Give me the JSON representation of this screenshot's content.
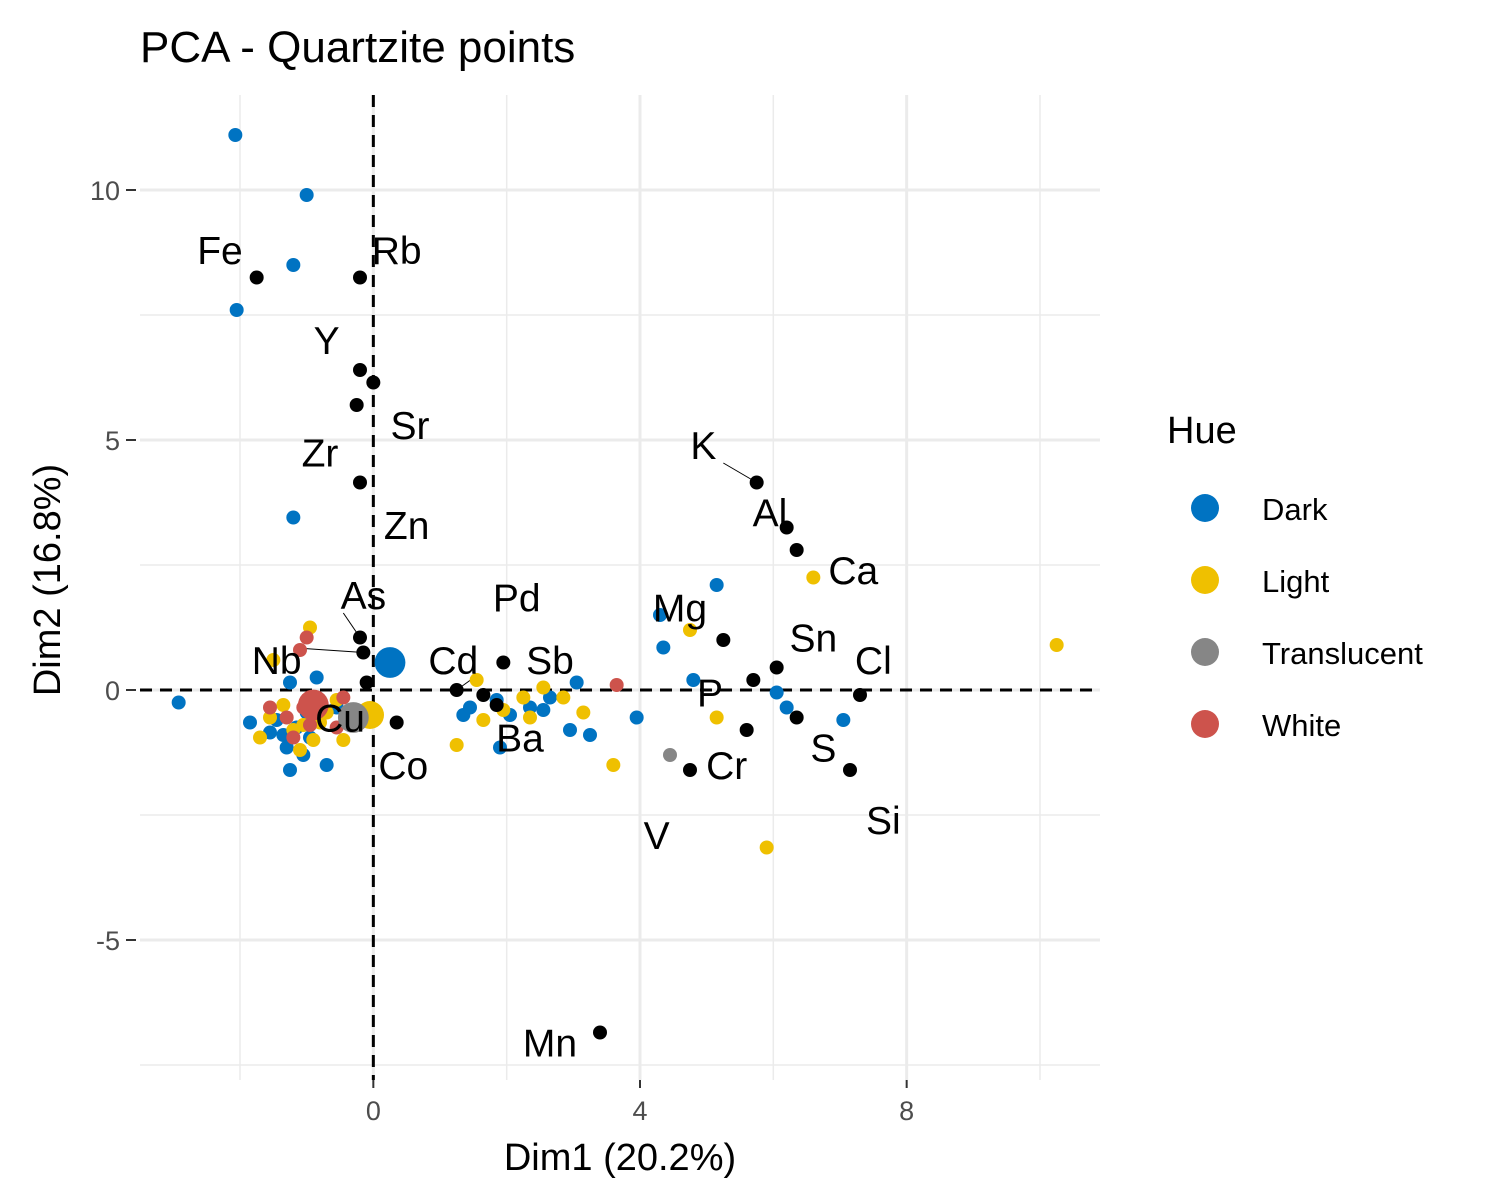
{
  "chart_data": {
    "type": "scatter",
    "title": "PCA - Quartzite points",
    "xlabel": "Dim1 (20.2%)",
    "ylabel": "Dim2 (16.8%)",
    "xlim": [
      -3.5,
      10.9
    ],
    "ylim": [
      -7.8,
      11.9
    ],
    "xticks": [
      0,
      4,
      8
    ],
    "yticks": [
      -5,
      0,
      5,
      10
    ],
    "tick_labels_x": [
      "0",
      "4",
      "8"
    ],
    "tick_labels_y": [
      "-5",
      "0",
      "5",
      "10"
    ],
    "grid": true,
    "reference_lines": {
      "x": 0,
      "y": 0,
      "style": "dashed"
    },
    "legend": {
      "title": "Hue",
      "placement": "right",
      "entries": [
        {
          "label": "Dark",
          "color": "#0073C2"
        },
        {
          "label": "Light",
          "color": "#EFC000"
        },
        {
          "label": "Translucent",
          "color": "#868686"
        },
        {
          "label": "White",
          "color": "#CD534C"
        }
      ]
    },
    "variable_color": "#000000",
    "variables": [
      {
        "name": "Fe",
        "x": -1.75,
        "y": 8.25,
        "lx": -2.3,
        "ly": 8.8
      },
      {
        "name": "Rb",
        "x": -0.2,
        "y": 8.25,
        "lx": 0.35,
        "ly": 8.8
      },
      {
        "name": "Y",
        "x": -0.2,
        "y": 6.4,
        "lx": -0.7,
        "ly": 7.0
      },
      {
        "name": "Sr",
        "x": 0.0,
        "y": 6.15,
        "lx": 0.55,
        "ly": 5.3
      },
      {
        "name": "Zr",
        "x": -0.25,
        "y": 5.7,
        "lx": -0.8,
        "ly": 4.75
      },
      {
        "name": "Zn",
        "x": -0.2,
        "y": 4.15,
        "lx": 0.5,
        "ly": 3.3
      },
      {
        "name": "As",
        "x": -0.2,
        "y": 1.05,
        "lx": -0.15,
        "ly": 1.9
      },
      {
        "name": "Nb",
        "x": -0.15,
        "y": 0.75,
        "lx": -1.45,
        "ly": 0.6
      },
      {
        "name": "Cu",
        "x": -0.1,
        "y": 0.15,
        "lx": -0.5,
        "ly": -0.55
      },
      {
        "name": "Cd",
        "x": 1.25,
        "y": 0.0,
        "lx": 1.2,
        "ly": 0.6
      },
      {
        "name": "Pd",
        "x": 1.95,
        "y": 0.55,
        "lx": 2.15,
        "ly": 1.85
      },
      {
        "name": "Sb",
        "x": 1.65,
        "y": -0.1,
        "lx": 2.65,
        "ly": 0.6
      },
      {
        "name": "Ba",
        "x": 1.85,
        "y": -0.3,
        "lx": 2.2,
        "ly": -0.95
      },
      {
        "name": "Co",
        "x": 0.35,
        "y": -0.65,
        "lx": 0.45,
        "ly": -1.5
      },
      {
        "name": "Mn",
        "x": 3.4,
        "y": -6.85,
        "lx": 2.65,
        "ly": -7.05
      },
      {
        "name": "K",
        "x": 5.75,
        "y": 4.15,
        "lx": 4.95,
        "ly": 4.9
      },
      {
        "name": "Al",
        "x": 6.2,
        "y": 3.25,
        "lx": 5.95,
        "ly": 3.55
      },
      {
        "name": "Ca",
        "x": 6.35,
        "y": 2.8,
        "lx": 7.2,
        "ly": 2.4
      },
      {
        "name": "Mg",
        "x": 5.25,
        "y": 1.0,
        "lx": 4.6,
        "ly": 1.65
      },
      {
        "name": "Sn",
        "x": 6.05,
        "y": 0.45,
        "lx": 6.6,
        "ly": 1.05
      },
      {
        "name": "Cl",
        "x": 7.3,
        "y": -0.1,
        "lx": 7.5,
        "ly": 0.6
      },
      {
        "name": "P",
        "x": 5.7,
        "y": 0.2,
        "lx": 5.05,
        "ly": -0.05
      },
      {
        "name": "S",
        "x": 6.35,
        "y": -0.55,
        "lx": 6.75,
        "ly": -1.15
      },
      {
        "name": "Cr",
        "x": 5.6,
        "y": -0.8,
        "lx": 5.3,
        "ly": -1.5
      },
      {
        "name": "V",
        "x": 4.75,
        "y": -1.6,
        "lx": 4.25,
        "ly": -2.9
      },
      {
        "name": "Si",
        "x": 7.15,
        "y": -1.6,
        "lx": 7.65,
        "ly": -2.6
      }
    ],
    "label_connectors": [
      "K",
      "As",
      "Nb",
      "Cd"
    ],
    "series": [
      {
        "name": "Dark",
        "color": "#0073C2",
        "points": [
          [
            -2.07,
            11.1
          ],
          [
            -1.0,
            9.9
          ],
          [
            -1.2,
            8.5
          ],
          [
            -2.05,
            7.6
          ],
          [
            -1.2,
            3.45
          ],
          [
            -2.92,
            -0.25
          ],
          [
            -1.85,
            -0.65
          ],
          [
            -1.55,
            -0.85
          ],
          [
            -1.45,
            -0.6
          ],
          [
            -1.35,
            -0.9
          ],
          [
            -1.3,
            -1.15
          ],
          [
            -1.25,
            -1.6
          ],
          [
            -1.15,
            -0.75
          ],
          [
            -1.05,
            -1.3
          ],
          [
            -1.0,
            -0.45
          ],
          [
            -0.95,
            -0.95
          ],
          [
            -0.85,
            0.25
          ],
          [
            -0.7,
            -1.5
          ],
          [
            -1.25,
            0.15
          ],
          [
            -0.55,
            -0.35
          ],
          [
            1.35,
            -0.5
          ],
          [
            1.45,
            -0.35
          ],
          [
            1.85,
            -0.2
          ],
          [
            1.9,
            -1.15
          ],
          [
            2.05,
            -0.5
          ],
          [
            2.35,
            -0.35
          ],
          [
            2.55,
            -0.4
          ],
          [
            2.65,
            -0.15
          ],
          [
            3.05,
            0.15
          ],
          [
            2.95,
            -0.8
          ],
          [
            3.25,
            -0.9
          ],
          [
            3.95,
            -0.55
          ],
          [
            4.3,
            1.5
          ],
          [
            4.35,
            0.85
          ],
          [
            4.8,
            0.2
          ],
          [
            5.15,
            2.1
          ],
          [
            6.05,
            -0.05
          ],
          [
            6.2,
            -0.35
          ],
          [
            7.05,
            -0.6
          ]
        ],
        "size": [
          [
            0.25,
            0.55,
            2.2
          ]
        ]
      },
      {
        "name": "Light",
        "color": "#EFC000",
        "points": [
          [
            -0.95,
            1.25
          ],
          [
            -1.5,
            0.6
          ],
          [
            -1.7,
            -0.95
          ],
          [
            -1.55,
            -0.55
          ],
          [
            -1.35,
            -0.3
          ],
          [
            -1.2,
            -0.8
          ],
          [
            -1.1,
            -1.2
          ],
          [
            -1.05,
            -0.7
          ],
          [
            -0.9,
            -1.0
          ],
          [
            -0.8,
            -0.65
          ],
          [
            -0.7,
            -0.45
          ],
          [
            -0.55,
            -0.2
          ],
          [
            -0.45,
            -1.0
          ],
          [
            1.25,
            -1.1
          ],
          [
            1.55,
            0.2
          ],
          [
            1.65,
            -0.6
          ],
          [
            1.95,
            -0.4
          ],
          [
            2.25,
            -0.15
          ],
          [
            2.35,
            -0.55
          ],
          [
            2.55,
            0.05
          ],
          [
            2.85,
            -0.15
          ],
          [
            3.15,
            -0.45
          ],
          [
            3.6,
            -1.5
          ],
          [
            4.75,
            1.2
          ],
          [
            5.15,
            -0.55
          ],
          [
            5.9,
            -3.15
          ],
          [
            6.6,
            2.25
          ],
          [
            10.25,
            0.9
          ]
        ],
        "size": [
          [
            -0.05,
            -0.5,
            2.0
          ]
        ]
      },
      {
        "name": "Translucent",
        "color": "#868686",
        "points": [
          [
            4.45,
            -1.3
          ]
        ],
        "size": [
          [
            -0.3,
            -0.55,
            2.2
          ]
        ]
      },
      {
        "name": "White",
        "color": "#CD534C",
        "points": [
          [
            -1.0,
            1.05
          ],
          [
            -1.1,
            0.8
          ],
          [
            -1.55,
            -0.35
          ],
          [
            -1.3,
            -0.55
          ],
          [
            -1.2,
            -0.95
          ],
          [
            -1.05,
            -0.35
          ],
          [
            -0.95,
            -0.7
          ],
          [
            -0.85,
            -0.15
          ],
          [
            -0.55,
            -0.75
          ],
          [
            -0.45,
            -0.15
          ],
          [
            3.65,
            0.1
          ]
        ],
        "size": [
          [
            -0.9,
            -0.3,
            2.2
          ]
        ]
      }
    ]
  }
}
